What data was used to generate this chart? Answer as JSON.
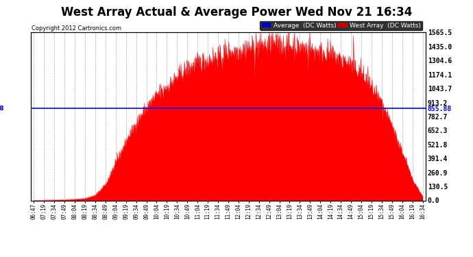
{
  "title": "West Array Actual & Average Power Wed Nov 21 16:34",
  "copyright": "Copyright 2012 Cartronics.com",
  "average_value": 855.88,
  "ymax": 1565.5,
  "ymin": 0.0,
  "yticks": [
    0.0,
    130.5,
    260.9,
    391.4,
    521.8,
    652.3,
    782.7,
    913.2,
    1043.7,
    1174.1,
    1304.6,
    1435.0,
    1565.5
  ],
  "ytick_labels": [
    "0.0",
    "130.5",
    "260.9",
    "391.4",
    "521.8",
    "652.3",
    "782.7",
    "913.2",
    "1043.7",
    "1174.1",
    "1304.6",
    "1435.0",
    "1565.5"
  ],
  "extra_ytick": 855.88,
  "background_color": "#ffffff",
  "plot_bg_color": "#ffffff",
  "grid_color": "#aaaaaa",
  "fill_color": "#ff0000",
  "line_color": "#ff0000",
  "avg_line_color": "#0000ff",
  "avg_label_color": "#0000ff",
  "title_fontsize": 13,
  "legend_avg_bg": "#0000cc",
  "legend_west_bg": "#cc0000",
  "xtick_labels": [
    "06:47",
    "07:19",
    "07:34",
    "07:49",
    "08:04",
    "08:19",
    "08:34",
    "08:49",
    "09:04",
    "09:19",
    "09:34",
    "09:49",
    "10:04",
    "10:19",
    "10:34",
    "10:49",
    "11:04",
    "11:19",
    "11:34",
    "11:49",
    "12:04",
    "12:19",
    "12:34",
    "12:49",
    "13:04",
    "13:19",
    "13:34",
    "13:49",
    "14:04",
    "14:19",
    "14:34",
    "14:49",
    "15:04",
    "15:19",
    "15:34",
    "15:49",
    "16:04",
    "16:19",
    "16:34"
  ],
  "power_data": [
    2,
    3,
    5,
    8,
    12,
    20,
    50,
    150,
    350,
    550,
    720,
    870,
    980,
    1060,
    1150,
    1230,
    1280,
    1310,
    1350,
    1380,
    1400,
    1420,
    1440,
    1460,
    1450,
    1440,
    1430,
    1410,
    1390,
    1360,
    1320,
    1270,
    1180,
    1060,
    900,
    700,
    450,
    200,
    40
  ],
  "noise_seed": 42,
  "noise_scale": 60
}
